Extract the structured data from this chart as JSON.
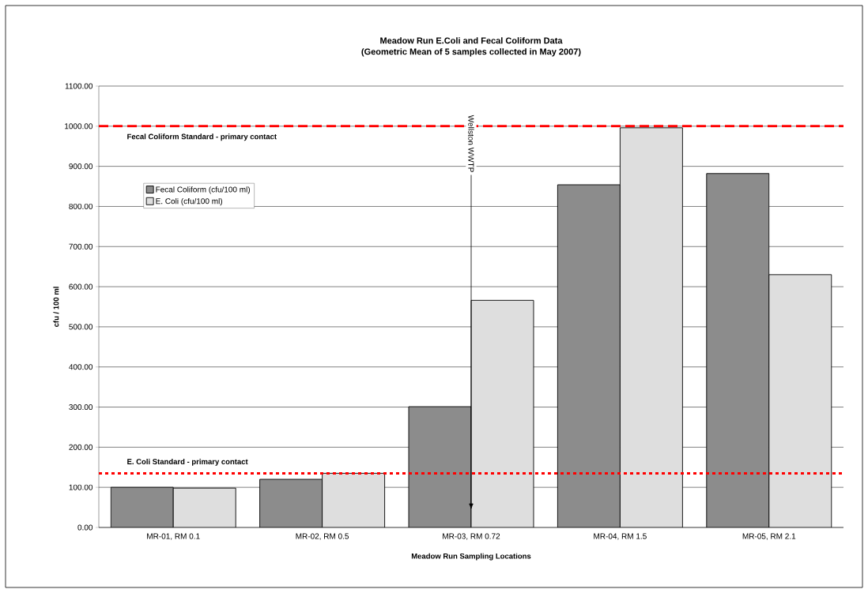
{
  "chart_data": {
    "type": "bar",
    "title": "Meadow Run E.Coli and Fecal Coliform Data",
    "subtitle": "(Geometric Mean of 5 samples collected in May 2007)",
    "xlabel": "Meadow Run Sampling Locations",
    "ylabel": "cfu / 100 ml",
    "categories": [
      "MR-01, RM 0.1",
      "MR-02, RM 0.5",
      "MR-03, RM 0.72",
      "MR-04, RM 1.5",
      "MR-05, RM 2.1"
    ],
    "series": [
      {
        "name": "Fecal Coliform (cfu/100 ml)",
        "color": "#8c8c8c",
        "values": [
          100,
          120,
          301,
          854,
          882
        ]
      },
      {
        "name": "E. Coli (cfu/100 ml)",
        "color": "#dedede",
        "values": [
          98,
          135,
          566,
          996,
          630
        ]
      }
    ],
    "ylim": [
      0,
      1100
    ],
    "yticks": [
      {
        "value": 0,
        "label": "0.00"
      },
      {
        "value": 100,
        "label": "100.00"
      },
      {
        "value": 200,
        "label": "200.00"
      },
      {
        "value": 300,
        "label": "300.00"
      },
      {
        "value": 400,
        "label": "400.00"
      },
      {
        "value": 500,
        "label": "500.00"
      },
      {
        "value": 600,
        "label": "600.00"
      },
      {
        "value": 700,
        "label": "700.00"
      },
      {
        "value": 800,
        "label": "800.00"
      },
      {
        "value": 900,
        "label": "900.00"
      },
      {
        "value": 1000,
        "label": "1000.00"
      },
      {
        "value": 1100,
        "label": "1100.00"
      }
    ],
    "ref_lines": [
      {
        "axis": "y",
        "value": 1000,
        "label": "Fecal Coliform Standard - primary contact",
        "color": "#ff0000",
        "line_style": "dashed"
      },
      {
        "axis": "y",
        "value": 135,
        "label": "E. Coli Standard - primary contact",
        "color": "#ff0000",
        "line_style": "dotted"
      }
    ],
    "annotations": [
      "Wellston WWTP"
    ],
    "grid": "y",
    "legend": "top left"
  }
}
